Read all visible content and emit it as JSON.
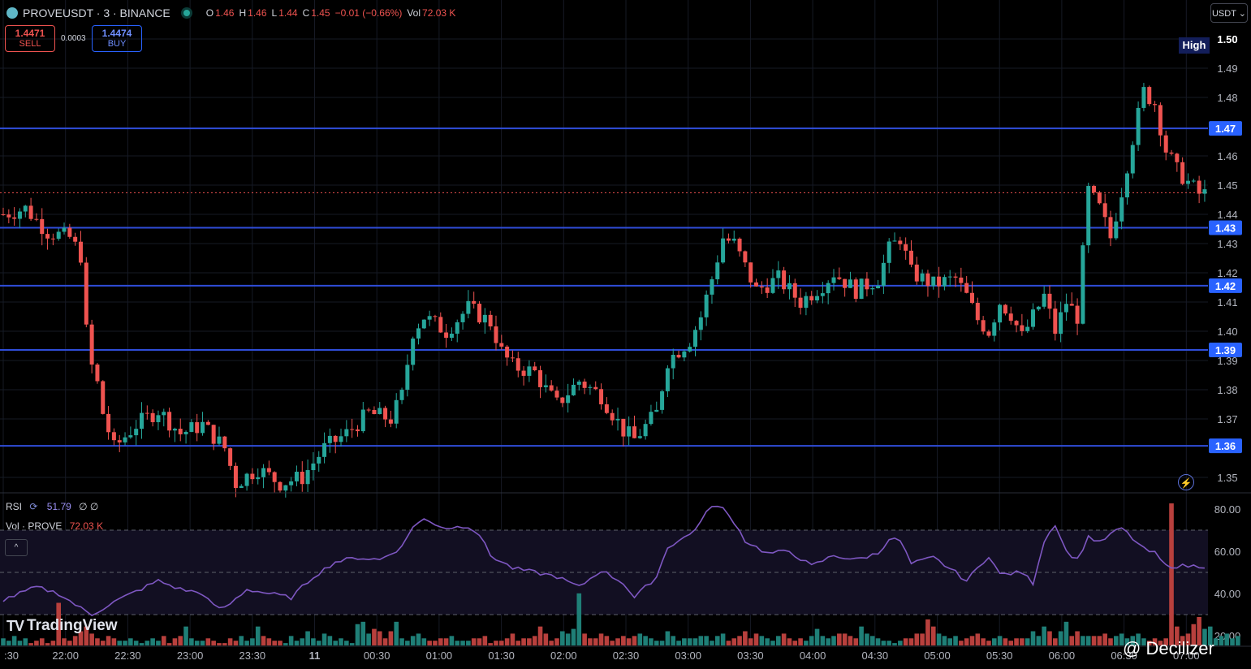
{
  "header": {
    "symbol": "PROVEUSDT · 3 · BINANCE",
    "open_label": "O",
    "open": "1.46",
    "high_label": "H",
    "high": "1.46",
    "low_label": "L",
    "low": "1.44",
    "close_label": "C",
    "close": "1.45",
    "change": "−0.01 (−0.66%)",
    "vol_label": "Vol",
    "vol": "72.03 K"
  },
  "trade": {
    "sell_price": "1.4471",
    "sell_label": "SELL",
    "spread": "0.0003",
    "buy_price": "1.4474",
    "buy_label": "BUY"
  },
  "currency_button": "USDT ⌄",
  "indicators": {
    "rsi_label": "RSI",
    "rsi_value": "51.79",
    "rsi_extra": "∅ ∅",
    "vol_label": "Vol · PROVE",
    "vol_value": "72.03 K"
  },
  "branding": {
    "tradingview": "TradingView",
    "watermark": "@ Decilizer"
  },
  "colors": {
    "up": "#26a69a",
    "down": "#ef5350",
    "hline": "#2f4dd8",
    "rsi": "#7e57c2",
    "background": "#000000"
  },
  "chart_data": {
    "type": "candlestick",
    "price_axis": {
      "ticks": [
        "1.50",
        "1.49",
        "1.48",
        "1.46",
        "1.45",
        "1.44",
        "1.43",
        "1.42",
        "1.41",
        "1.40",
        "1.39",
        "1.38",
        "1.37",
        "1.35"
      ],
      "range": [
        1.345,
        1.505
      ]
    },
    "high_marker": {
      "label": "High",
      "value": "1.50"
    },
    "horizontal_levels": [
      {
        "value": 1.4694,
        "label": "1.47"
      },
      {
        "value": 1.4354,
        "label": "1.43"
      },
      {
        "value": 1.4156,
        "label": "1.42"
      },
      {
        "value": 1.3936,
        "label": "1.39"
      },
      {
        "value": 1.3608,
        "label": "1.36"
      }
    ],
    "current_price_line": 1.4474,
    "time_axis": [
      ":30",
      "22:00",
      "22:30",
      "23:00",
      "23:30",
      "11",
      "00:30",
      "01:00",
      "01:30",
      "02:00",
      "02:30",
      "03:00",
      "03:30",
      "04:00",
      "04:30",
      "05:00",
      "05:30",
      "06:00",
      "06:30",
      "07:00"
    ],
    "close_path": [
      [
        0,
        1.44
      ],
      [
        4,
        1.442
      ],
      [
        8,
        1.434
      ],
      [
        12,
        1.432
      ],
      [
        14,
        1.426
      ],
      [
        15,
        1.4
      ],
      [
        16,
        1.388
      ],
      [
        17,
        1.382
      ],
      [
        18,
        1.372
      ],
      [
        20,
        1.36
      ],
      [
        24,
        1.368
      ],
      [
        28,
        1.373
      ],
      [
        32,
        1.365
      ],
      [
        36,
        1.368
      ],
      [
        40,
        1.36
      ],
      [
        42,
        1.348
      ],
      [
        46,
        1.353
      ],
      [
        50,
        1.348
      ],
      [
        54,
        1.35
      ],
      [
        58,
        1.36
      ],
      [
        62,
        1.365
      ],
      [
        66,
        1.372
      ],
      [
        70,
        1.37
      ],
      [
        72,
        1.378
      ],
      [
        74,
        1.4
      ],
      [
        76,
        1.405
      ],
      [
        80,
        1.4
      ],
      [
        84,
        1.408
      ],
      [
        88,
        1.403
      ],
      [
        90,
        1.393
      ],
      [
        92,
        1.388
      ],
      [
        96,
        1.386
      ],
      [
        98,
        1.38
      ],
      [
        100,
        1.375
      ],
      [
        104,
        1.383
      ],
      [
        108,
        1.378
      ],
      [
        110,
        1.372
      ],
      [
        112,
        1.366
      ],
      [
        114,
        1.363
      ],
      [
        118,
        1.372
      ],
      [
        120,
        1.39
      ],
      [
        124,
        1.397
      ],
      [
        126,
        1.405
      ],
      [
        128,
        1.418
      ],
      [
        130,
        1.432
      ],
      [
        132,
        1.43
      ],
      [
        134,
        1.422
      ],
      [
        136,
        1.414
      ],
      [
        140,
        1.418
      ],
      [
        144,
        1.41
      ],
      [
        148,
        1.416
      ],
      [
        150,
        1.42
      ],
      [
        154,
        1.414
      ],
      [
        158,
        1.418
      ],
      [
        160,
        1.428
      ],
      [
        162,
        1.432
      ],
      [
        164,
        1.42
      ],
      [
        168,
        1.416
      ],
      [
        172,
        1.418
      ],
      [
        174,
        1.412
      ],
      [
        176,
        1.404
      ],
      [
        178,
        1.4
      ],
      [
        180,
        1.41
      ],
      [
        182,
        1.406
      ],
      [
        184,
        1.398
      ],
      [
        186,
        1.405
      ],
      [
        188,
        1.412
      ],
      [
        190,
        1.4
      ],
      [
        192,
        1.41
      ],
      [
        194,
        1.405
      ],
      [
        196,
        1.448
      ],
      [
        198,
        1.442
      ],
      [
        200,
        1.432
      ],
      [
        202,
        1.448
      ],
      [
        204,
        1.466
      ],
      [
        206,
        1.482
      ],
      [
        208,
        1.478
      ],
      [
        210,
        1.462
      ],
      [
        212,
        1.455
      ],
      [
        214,
        1.451
      ],
      [
        216,
        1.447
      ]
    ],
    "rsi": {
      "ticks": [
        "80.00",
        "60.00",
        "40.00",
        "20.00"
      ],
      "levels": [
        70,
        50,
        30
      ],
      "path": [
        [
          0,
          37
        ],
        [
          6,
          43
        ],
        [
          10,
          40
        ],
        [
          14,
          33
        ],
        [
          16,
          30
        ],
        [
          20,
          36
        ],
        [
          24,
          41
        ],
        [
          28,
          46
        ],
        [
          32,
          42
        ],
        [
          36,
          40
        ],
        [
          38,
          34
        ],
        [
          40,
          33
        ],
        [
          44,
          42
        ],
        [
          48,
          40
        ],
        [
          52,
          38
        ],
        [
          56,
          48
        ],
        [
          60,
          55
        ],
        [
          64,
          57
        ],
        [
          68,
          56
        ],
        [
          72,
          62
        ],
        [
          74,
          72
        ],
        [
          76,
          75
        ],
        [
          80,
          71
        ],
        [
          84,
          72
        ],
        [
          86,
          68
        ],
        [
          88,
          58
        ],
        [
          92,
          52
        ],
        [
          96,
          50
        ],
        [
          100,
          48
        ],
        [
          104,
          43
        ],
        [
          108,
          51
        ],
        [
          112,
          45
        ],
        [
          114,
          38
        ],
        [
          118,
          48
        ],
        [
          120,
          62
        ],
        [
          124,
          68
        ],
        [
          126,
          74
        ],
        [
          128,
          82
        ],
        [
          130,
          80
        ],
        [
          132,
          74
        ],
        [
          134,
          65
        ],
        [
          138,
          59
        ],
        [
          142,
          60
        ],
        [
          146,
          53
        ],
        [
          150,
          58
        ],
        [
          154,
          56
        ],
        [
          158,
          59
        ],
        [
          160,
          66
        ],
        [
          162,
          65
        ],
        [
          164,
          54
        ],
        [
          168,
          57
        ],
        [
          172,
          50
        ],
        [
          174,
          46
        ],
        [
          176,
          52
        ],
        [
          178,
          58
        ],
        [
          180,
          49
        ],
        [
          184,
          50
        ],
        [
          186,
          45
        ],
        [
          188,
          65
        ],
        [
          190,
          73
        ],
        [
          192,
          60
        ],
        [
          194,
          56
        ],
        [
          196,
          67
        ],
        [
          198,
          64
        ],
        [
          200,
          68
        ],
        [
          202,
          71
        ],
        [
          204,
          66
        ],
        [
          206,
          61
        ],
        [
          208,
          59
        ],
        [
          210,
          53
        ]
      ]
    },
    "volume": [
      3,
      2,
      4,
      2,
      3,
      1,
      2,
      3,
      1,
      2,
      18,
      3,
      2,
      4,
      6,
      8,
      5,
      3,
      2,
      4,
      3,
      2,
      2,
      3,
      2,
      1,
      2,
      3,
      2,
      4,
      1,
      3,
      4,
      8,
      3,
      2,
      2,
      3,
      2,
      1,
      1,
      3,
      2,
      4,
      2,
      3,
      8,
      4,
      3,
      2,
      2,
      1,
      4,
      2,
      3,
      6,
      3,
      2,
      5,
      4,
      2,
      3,
      2,
      1,
      9,
      10,
      5,
      7,
      6,
      3,
      6,
      10,
      3,
      2,
      4,
      5,
      3,
      2,
      2,
      3,
      3,
      4,
      2,
      2,
      2,
      3,
      3,
      4,
      1,
      2,
      2,
      3,
      5,
      2,
      3,
      3,
      4,
      8,
      5,
      2,
      3,
      6,
      5,
      7,
      22,
      5,
      3,
      3,
      5,
      4,
      2,
      3,
      4,
      3,
      4,
      5,
      4,
      3,
      2,
      2,
      6,
      4,
      2,
      3,
      3,
      3,
      4,
      4,
      2,
      4,
      5,
      2,
      3,
      4,
      6,
      3,
      5,
      4,
      3,
      2,
      4,
      5,
      3,
      2,
      3,
      2,
      4,
      7,
      4,
      3,
      4,
      5,
      5,
      4,
      3,
      8,
      5,
      4,
      3,
      2,
      2,
      1,
      2,
      3,
      3,
      5,
      5,
      11,
      8,
      5,
      4,
      3,
      4,
      2,
      3,
      4,
      5,
      3,
      2,
      3,
      4,
      3,
      2,
      3,
      3,
      3,
      6,
      4,
      8,
      6,
      3,
      6,
      10,
      4,
      6,
      4,
      4,
      4,
      4,
      5,
      3,
      4,
      5,
      3,
      4,
      5,
      3,
      2,
      3,
      2,
      3,
      60,
      8,
      4,
      5,
      9,
      12,
      7,
      8,
      3,
      4,
      5,
      3,
      4
    ]
  }
}
